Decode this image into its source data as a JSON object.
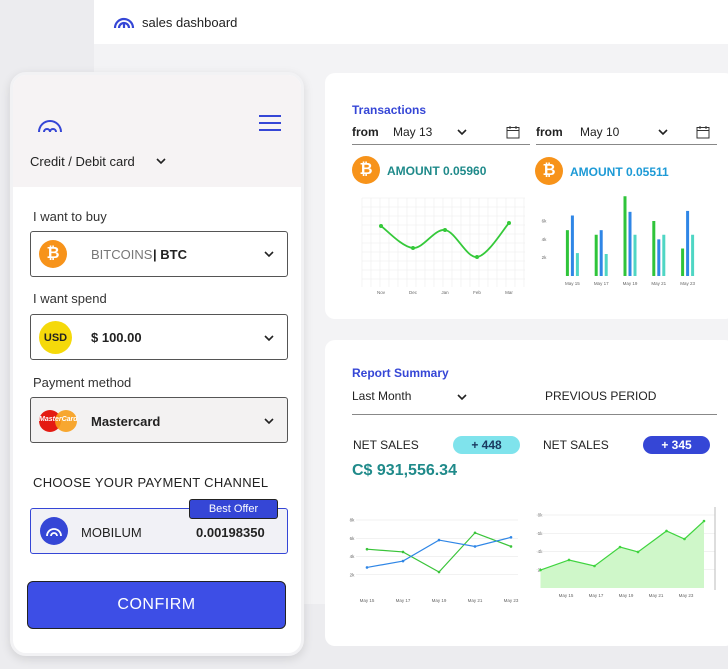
{
  "header": {
    "title": "sales dashboard"
  },
  "btc_symbol": "₿",
  "payment": {
    "method_tab": "Credit / Debit card",
    "buy_label": "I want to buy",
    "buy_currency": "BITCOINS",
    "buy_code": "| BTC",
    "spend_label": "I want spend",
    "spend_badge": "USD",
    "spend_amount": "$ 100.00",
    "method_label": "Payment method",
    "method_badge": "MasterCard",
    "method_value": "Mastercard",
    "channel_title": "CHOOSE YOUR PAYMENT CHANNEL",
    "offer_badge": "Best Offer",
    "channel_name": "MOBILUM",
    "channel_value": "0.00198350",
    "confirm": "CONFIRM"
  },
  "transactions": {
    "title": "Transactions",
    "filters": [
      {
        "label": "from",
        "value": "May 13"
      },
      {
        "label": "from",
        "value": "May 10"
      }
    ],
    "amounts": [
      "AMOUNT 0.05960",
      "AMOUNT 0.05511"
    ]
  },
  "report": {
    "title": "Report Summary",
    "period": "Last Month",
    "compare": "PREVIOUS PERIOD",
    "metrics": [
      {
        "label": "NET SALES",
        "change": "+ 448"
      },
      {
        "label": "NET SALES",
        "change": "+ 345"
      }
    ],
    "total": "C$ 931,556.34"
  },
  "chart_data": [
    {
      "type": "line",
      "categories": [
        "Nov",
        "Dec",
        "Jan",
        "Feb",
        "Mar"
      ],
      "series": [
        {
          "color": "#35c93a",
          "values": [
            7.8,
            3.4,
            7,
            1.6,
            8.4
          ]
        }
      ],
      "ylim": [
        0,
        10
      ],
      "smooth": true,
      "markers": true
    },
    {
      "type": "bar",
      "categories": [
        "May 15",
        "May 17",
        "May 19",
        "May 21",
        "May 23"
      ],
      "series": [
        {
          "color": "#2fc43a",
          "values": [
            5000,
            4500,
            8700,
            6000,
            3000
          ]
        },
        {
          "color": "#2f86e6",
          "values": [
            6600,
            5000,
            7000,
            4000,
            7100
          ]
        },
        {
          "color": "#4fd6c4",
          "values": [
            2500,
            2400,
            4500,
            4500,
            4500
          ]
        }
      ],
      "ylim": [
        0,
        9000
      ],
      "yticks": [
        {
          "value": 2000,
          "label": "2k"
        },
        {
          "value": 4000,
          "label": "4k"
        },
        {
          "value": 6000,
          "label": "6k"
        }
      ]
    },
    {
      "type": "line",
      "categories": [
        "May 15",
        "May 17",
        "May 19",
        "May 21",
        "May 23"
      ],
      "series": [
        {
          "color": "#3ac43a",
          "values": [
            4800,
            4500,
            2300,
            6600,
            5100
          ]
        },
        {
          "color": "#2f86e6",
          "values": [
            2800,
            3500,
            5800,
            5100,
            6100
          ]
        }
      ],
      "ylim": [
        0,
        8000
      ],
      "grid": true,
      "markers": true,
      "yticks": [
        {
          "value": 2000,
          "label": "2k"
        },
        {
          "value": 4000,
          "label": "4k"
        },
        {
          "value": 6000,
          "label": "6k"
        },
        {
          "value": 8000,
          "label": "8k"
        }
      ]
    },
    {
      "type": "area",
      "x": [
        13.3,
        15.2,
        16.9,
        18.6,
        19.8,
        21.7,
        22.9,
        24.2
      ],
      "series": [
        {
          "color": "#3fd43f",
          "fill": "#cff7c9",
          "values": [
            1970,
            3070,
            2410,
            4490,
            3950,
            6250,
            5370,
            7340
          ]
        }
      ],
      "xlim": [
        13,
        25
      ],
      "ylim": [
        0,
        8000
      ],
      "grid": true,
      "markers": true,
      "xticks": [
        {
          "value": 15,
          "label": "May 15"
        },
        {
          "value": 17,
          "label": "May 17"
        },
        {
          "value": 19,
          "label": "May 19"
        },
        {
          "value": 21,
          "label": "May 21"
        },
        {
          "value": 23,
          "label": "May 23"
        }
      ],
      "yticks": [
        {
          "value": 2000,
          "label": "2k"
        },
        {
          "value": 4000,
          "label": "4k"
        },
        {
          "value": 6000,
          "label": "6k"
        },
        {
          "value": 8000,
          "label": "8k"
        }
      ]
    }
  ]
}
